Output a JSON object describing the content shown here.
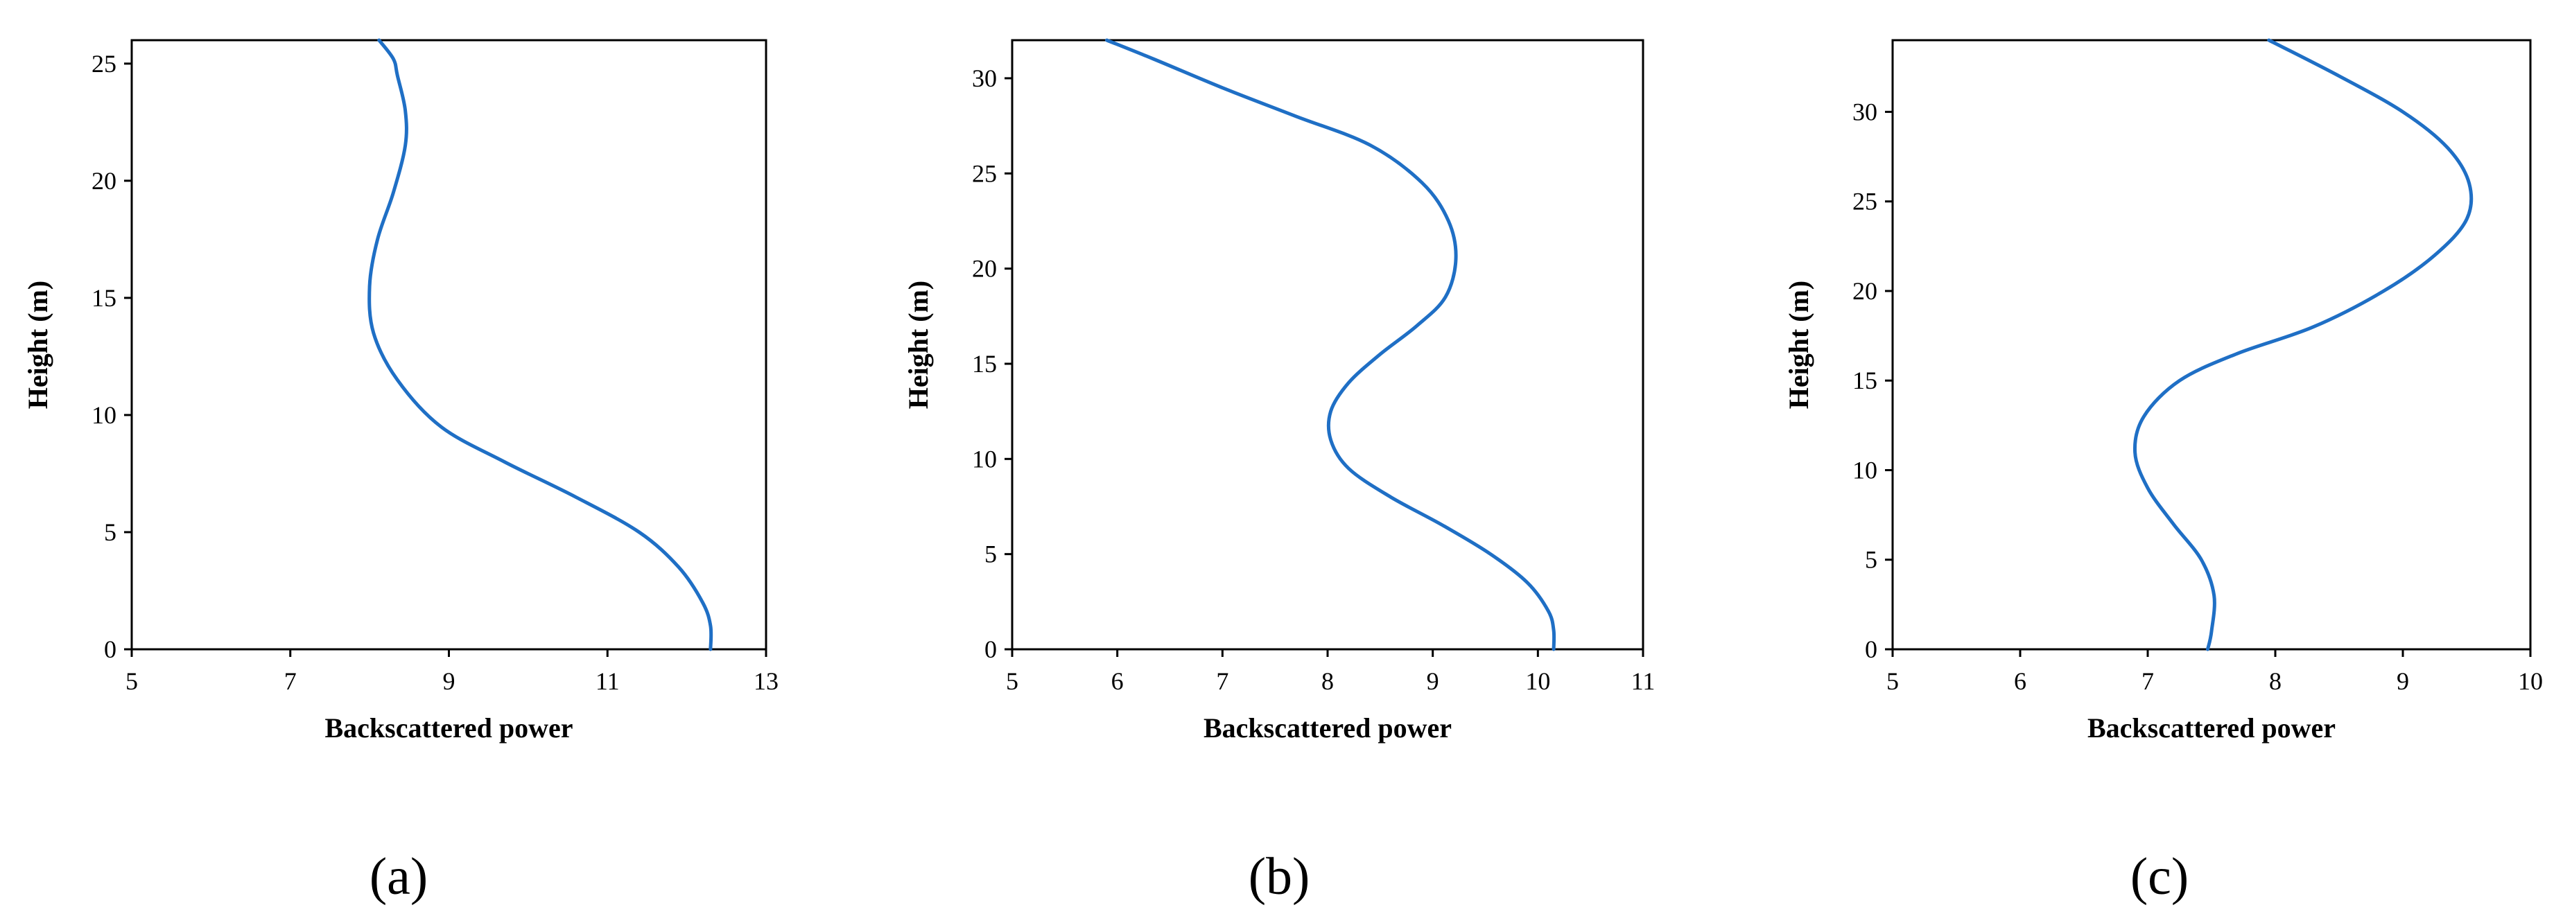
{
  "chart_data": [
    {
      "type": "line",
      "panel_label": "(a)",
      "xlabel": "Backscattered power",
      "ylabel": "Height (m)",
      "xlim": [
        5,
        13
      ],
      "ylim": [
        0,
        26
      ],
      "xticks": [
        5,
        7,
        9,
        11,
        13
      ],
      "yticks": [
        0,
        5,
        10,
        15,
        20,
        25
      ],
      "series": [
        {
          "color": "#1f6fc5",
          "x": [
            12.3,
            12.3,
            12.2,
            11.9,
            11.4,
            10.6,
            9.7,
            8.9,
            8.35,
            8.05,
            8.0,
            8.1,
            8.3,
            8.45,
            8.45,
            8.35,
            8.3,
            8.12
          ],
          "y": [
            0,
            1,
            2,
            3.5,
            5,
            6.5,
            8,
            9.5,
            11.5,
            13.5,
            15.5,
            17.5,
            19.5,
            21.5,
            23,
            24.5,
            25.2,
            26
          ]
        }
      ]
    },
    {
      "type": "line",
      "panel_label": "(b)",
      "xlabel": "Backscattered power",
      "ylabel": "Height (m)",
      "xlim": [
        5,
        11
      ],
      "ylim": [
        0,
        32
      ],
      "xticks": [
        5,
        6,
        7,
        8,
        9,
        10,
        11
      ],
      "yticks": [
        0,
        5,
        10,
        15,
        20,
        25,
        30
      ],
      "series": [
        {
          "color": "#1f6fc5",
          "x": [
            10.15,
            10.15,
            10.1,
            9.9,
            9.55,
            9.1,
            8.6,
            8.2,
            8.03,
            8.03,
            8.2,
            8.5,
            8.85,
            9.12,
            9.22,
            9.15,
            8.9,
            8.4,
            7.7,
            7.0,
            6.35,
            5.9
          ],
          "y": [
            0,
            1,
            2,
            3.5,
            5,
            6.5,
            8,
            9.5,
            11,
            12.5,
            14,
            15.5,
            17,
            18.5,
            20.5,
            22.5,
            24.5,
            26.5,
            28,
            29.5,
            31,
            32
          ]
        }
      ]
    },
    {
      "type": "line",
      "panel_label": "(c)",
      "xlabel": "Backscattered power",
      "ylabel": "Height (m)",
      "xlim": [
        5,
        10
      ],
      "ylim": [
        0,
        34
      ],
      "xticks": [
        5,
        6,
        7,
        8,
        9,
        10
      ],
      "yticks": [
        0,
        5,
        10,
        15,
        20,
        25,
        30
      ],
      "series": [
        {
          "color": "#1f6fc5",
          "x": [
            7.47,
            7.5,
            7.52,
            7.42,
            7.2,
            7.0,
            6.9,
            6.97,
            7.25,
            7.7,
            8.3,
            8.85,
            9.25,
            9.5,
            9.52,
            9.35,
            9.0,
            8.5,
            7.95
          ],
          "y": [
            0,
            1,
            3,
            5,
            7,
            9,
            11,
            13,
            15,
            16.5,
            18,
            20,
            22,
            24,
            26,
            28,
            30,
            32,
            34
          ]
        }
      ]
    }
  ]
}
